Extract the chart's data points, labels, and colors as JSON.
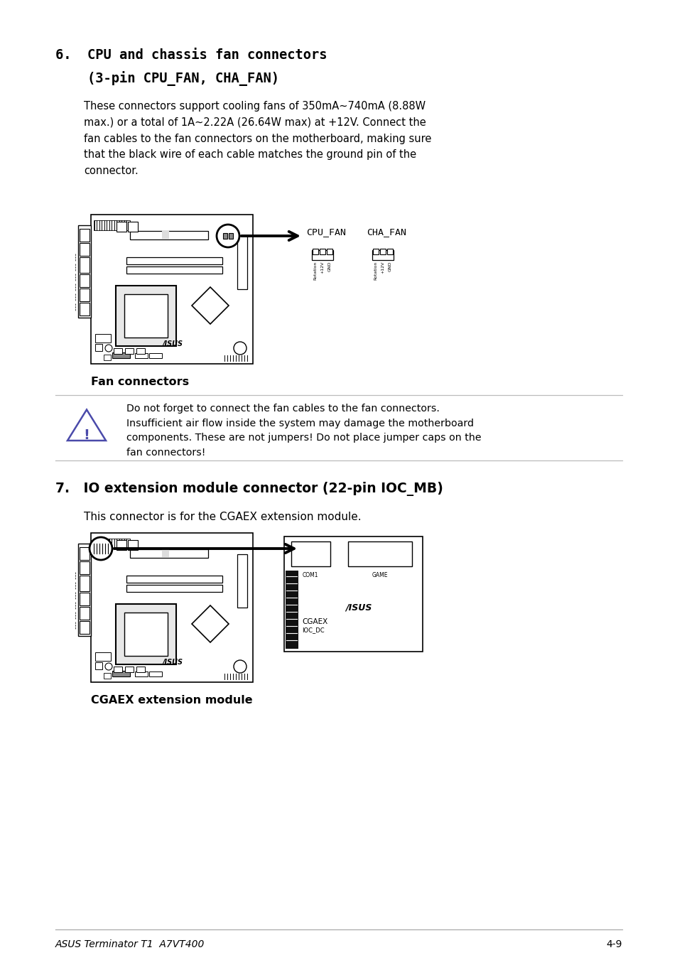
{
  "page_bg": "#ffffff",
  "text_color": "#000000",
  "section6_title_line1": "6.  CPU and chassis fan connectors",
  "section6_title_line2": "    (3-pin CPU_FAN, CHA_FAN)",
  "section6_body": "These connectors support cooling fans of 350mA~740mA (8.88W\nmax.) or a total of 1A~2.22A (26.64W max) at +12V. Connect the\nfan cables to the fan connectors on the motherboard, making sure\nthat the black wire of each cable matches the ground pin of the\nconnector.",
  "fan_label": "Fan connectors",
  "cpu_fan_label": "CPU_FAN",
  "cha_fan_label": "CHA_FAN",
  "fan_pin_labels": [
    "Rotation",
    "+12V",
    "GND"
  ],
  "warning_text": "Do not forget to connect the fan cables to the fan connectors.\nInsufficient air flow inside the system may damage the motherboard\ncomponents. These are not jumpers! Do not place jumper caps on the\nfan connectors!",
  "section7_title": "7.   IO extension module connector (22-pin IOC_MB)",
  "section7_body": "This connector is for the CGAEX extension module.",
  "cgaex_label": "CGAEX extension module",
  "footer_left": "ASUS Terminator T1  A7VT400",
  "footer_right": "4-9"
}
